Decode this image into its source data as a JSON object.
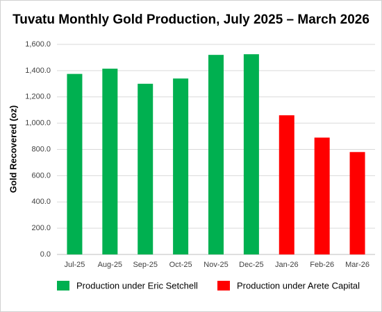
{
  "chart_data": {
    "type": "bar",
    "title": "Tuvatu Monthly Gold Production, July 2025 – March 2026",
    "y_label": "Gold Recovered (oz)",
    "categories": [
      "Jul-25",
      "Aug-25",
      "Sep-25",
      "Oct-25",
      "Nov-25",
      "Dec-25",
      "Jan-26",
      "Feb-26",
      "Mar-26"
    ],
    "series": [
      {
        "name": "Production under Eric Setchell",
        "color": "#00b050",
        "values": [
          1375,
          1415,
          1300,
          1340,
          1520,
          1525,
          null,
          null,
          null
        ]
      },
      {
        "name": "Production under Arete Capital",
        "color": "#ff0000",
        "values": [
          null,
          null,
          null,
          null,
          null,
          null,
          1060,
          890,
          780
        ]
      }
    ],
    "ylim": [
      0,
      1600
    ],
    "yticks": [
      {
        "value": 0,
        "label": "0.0"
      },
      {
        "value": 200,
        "label": "200.0"
      },
      {
        "value": 400,
        "label": "400.0"
      },
      {
        "value": 600,
        "label": "600.0"
      },
      {
        "value": 800,
        "label": "800.0"
      },
      {
        "value": 1000,
        "label": "1,000.0"
      },
      {
        "value": 1200,
        "label": "1,200.0"
      },
      {
        "value": 1400,
        "label": "1,400.0"
      },
      {
        "value": 1600,
        "label": "1,600.0"
      }
    ],
    "grid": true,
    "legend": "bottom"
  }
}
